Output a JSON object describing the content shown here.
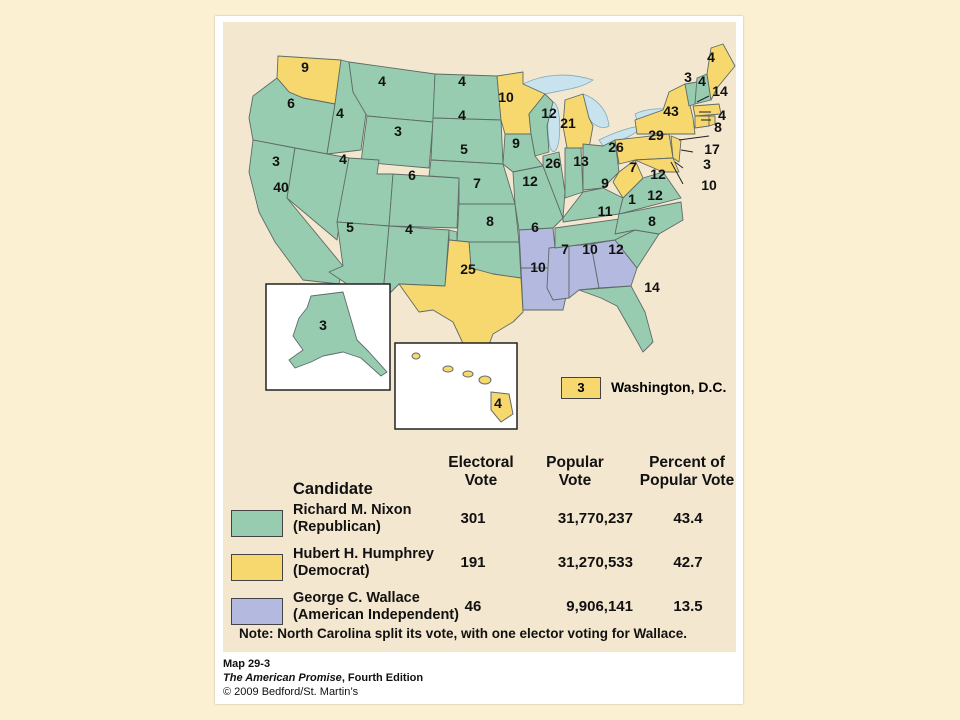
{
  "colors": {
    "nixon": "#98ccb1",
    "humphrey": "#f7d86f",
    "wallace": "#b4b9e0",
    "background": "#fbf1d2",
    "panel": "#f4e7cf",
    "water": "#c9e3ee"
  },
  "map": {
    "state_labels": [
      "9",
      "4",
      "4",
      "10",
      "4",
      "6",
      "4",
      "3",
      "4",
      "12",
      "21",
      "43",
      "14",
      "3",
      "4",
      "8",
      "4",
      "9",
      "5",
      "26",
      "13",
      "26",
      "29",
      "17",
      "3",
      "3",
      "4",
      "6",
      "7",
      "12",
      "9",
      "7",
      "12",
      "40",
      "10",
      "1",
      "12",
      "11",
      "5",
      "4",
      "8",
      "6",
      "10",
      "7",
      "10",
      "12",
      "8",
      "25",
      "14",
      "3",
      "4"
    ],
    "dc_legend": {
      "value": "3",
      "label": "Washington, D.C."
    }
  },
  "legend": {
    "header": {
      "candidate": "Candidate",
      "electoral": "Electoral Vote",
      "popular": "Popular Vote",
      "percent": "Percent of Popular Vote"
    },
    "rows": [
      {
        "name_line1": "Richard M. Nixon",
        "name_line2": "(Republican)",
        "electoral": "301",
        "popular": "31,770,237",
        "percent": "43.4",
        "color": "#98ccb1"
      },
      {
        "name_line1": "Hubert H. Humphrey",
        "name_line2": "(Democrat)",
        "electoral": "191",
        "popular": "31,270,533",
        "percent": "42.7",
        "color": "#f7d86f"
      },
      {
        "name_line1": "George C. Wallace",
        "name_line2": "(American Independent)",
        "electoral": "46",
        "popular": "9,906,141",
        "percent": "13.5",
        "color": "#b4b9e0"
      }
    ]
  },
  "note": "Note: North Carolina split its vote, with one elector voting for Wallace.",
  "credits": {
    "map_id": "Map 29-3",
    "book": "The American Promise",
    "edition": ", Fourth Edition",
    "copyright": "© 2009 Bedford/St. Martin’s"
  }
}
